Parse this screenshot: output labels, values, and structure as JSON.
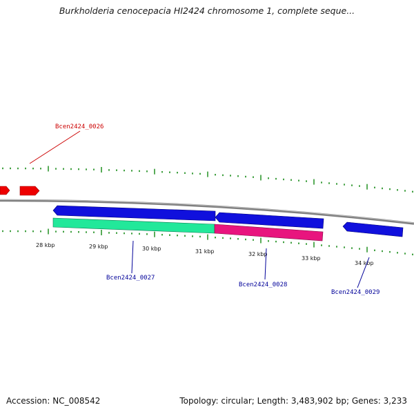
{
  "title": "Burkholderia cenocepacia HI2424 chromosome 1, complete seque...",
  "footer": {
    "accession": "Accession: NC_008542",
    "summary": "Topology: circular; Length: 3,483,902 bp; Genes: 3,233"
  },
  "scale": {
    "ticks": [
      "28 kbp",
      "29 kbp",
      "30 kbp",
      "31 kbp",
      "32 kbp",
      "33 kbp",
      "34 kbp"
    ]
  },
  "genes": [
    {
      "name": "Bcen2424_0026",
      "label_color": "#cc0000"
    },
    {
      "name": "Bcen2424_0027",
      "label_color": "#000099"
    },
    {
      "name": "Bcen2424_0028",
      "label_color": "#000099"
    },
    {
      "name": "Bcen2424_0029",
      "label_color": "#000099"
    }
  ],
  "colors": {
    "backbone": "#808080",
    "forward_feature": "#ee0000",
    "reverse_feature": "#1010dd",
    "orf_green": "#22e89a",
    "orf_pink": "#e8157e",
    "tick": "#118811"
  }
}
